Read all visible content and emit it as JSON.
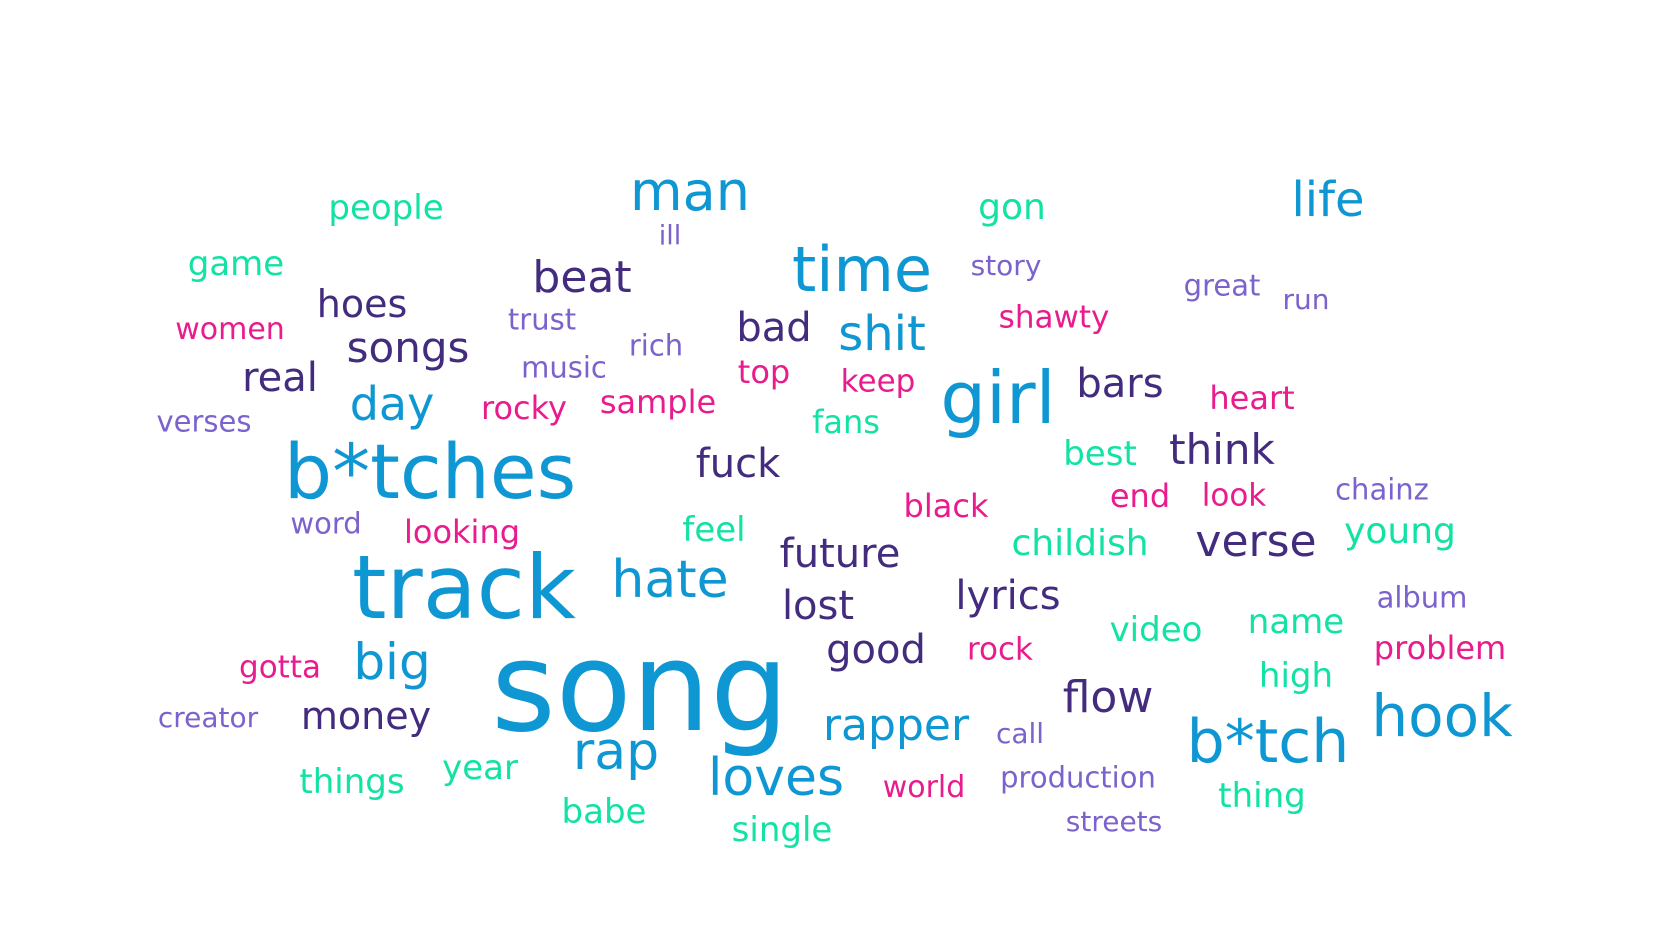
{
  "palette": {
    "blue": "#0E97D2",
    "green": "#12E2A4",
    "navy": "#432C7E",
    "pink": "#E81C8C",
    "violet": "#7C62CC"
  },
  "words": [
    {
      "text": "song",
      "weight": 100
    },
    {
      "text": "track",
      "weight": 80
    },
    {
      "text": "b*tches",
      "weight": 72
    },
    {
      "text": "girl",
      "weight": 70
    },
    {
      "text": "time",
      "weight": 63
    },
    {
      "text": "b*tch",
      "weight": 63
    },
    {
      "text": "hook",
      "weight": 60
    },
    {
      "text": "man",
      "weight": 55
    },
    {
      "text": "hate",
      "weight": 54
    },
    {
      "text": "rap",
      "weight": 54
    },
    {
      "text": "loves",
      "weight": 54
    },
    {
      "text": "big",
      "weight": 52
    },
    {
      "text": "shit",
      "weight": 51
    },
    {
      "text": "life",
      "weight": 50
    },
    {
      "text": "rapper",
      "weight": 48
    },
    {
      "text": "day",
      "weight": 48
    },
    {
      "text": "beat",
      "weight": 48
    },
    {
      "text": "verse",
      "weight": 47
    },
    {
      "text": "flow",
      "weight": 46
    },
    {
      "text": "songs",
      "weight": 45
    },
    {
      "text": "think",
      "weight": 45
    },
    {
      "text": "bars",
      "weight": 44
    },
    {
      "text": "good",
      "weight": 44
    },
    {
      "text": "real",
      "weight": 42
    },
    {
      "text": "bad",
      "weight": 42
    },
    {
      "text": "fuck",
      "weight": 42
    },
    {
      "text": "future",
      "weight": 42
    },
    {
      "text": "lost",
      "weight": 42
    },
    {
      "text": "lyrics",
      "weight": 42
    },
    {
      "text": "hoes",
      "weight": 41
    },
    {
      "text": "money",
      "weight": 40
    },
    {
      "text": "childish",
      "weight": 39
    },
    {
      "text": "young",
      "weight": 39
    },
    {
      "text": "gon",
      "weight": 38
    },
    {
      "text": "people",
      "weight": 37
    },
    {
      "text": "game",
      "weight": 36
    },
    {
      "text": "feel",
      "weight": 36
    },
    {
      "text": "best",
      "weight": 36
    },
    {
      "text": "video",
      "weight": 36
    },
    {
      "text": "name",
      "weight": 36
    },
    {
      "text": "high",
      "weight": 36
    },
    {
      "text": "year",
      "weight": 36
    },
    {
      "text": "things",
      "weight": 36
    },
    {
      "text": "thing",
      "weight": 36
    },
    {
      "text": "babe",
      "weight": 35
    },
    {
      "text": "single",
      "weight": 35
    },
    {
      "text": "fans",
      "weight": 33
    },
    {
      "text": "black",
      "weight": 33
    },
    {
      "text": "heart",
      "weight": 33
    },
    {
      "text": "sample",
      "weight": 33
    },
    {
      "text": "rocky",
      "weight": 33
    },
    {
      "text": "top",
      "weight": 33
    },
    {
      "text": "looking",
      "weight": 33
    },
    {
      "text": "end",
      "weight": 33
    },
    {
      "text": "look",
      "weight": 32
    },
    {
      "text": "problem",
      "weight": 33
    },
    {
      "text": "gotta",
      "weight": 32
    },
    {
      "text": "rock",
      "weight": 32
    },
    {
      "text": "shawty",
      "weight": 32
    },
    {
      "text": "keep",
      "weight": 31
    },
    {
      "text": "women",
      "weight": 31
    },
    {
      "text": "world",
      "weight": 31
    },
    {
      "text": "music",
      "weight": 30
    },
    {
      "text": "trust",
      "weight": 30
    },
    {
      "text": "rich",
      "weight": 30
    },
    {
      "text": "story",
      "weight": 29
    },
    {
      "text": "great",
      "weight": 30
    },
    {
      "text": "run",
      "weight": 29
    },
    {
      "text": "verses",
      "weight": 30
    },
    {
      "text": "word",
      "weight": 30
    },
    {
      "text": "chainz",
      "weight": 30
    },
    {
      "text": "album",
      "weight": 30
    },
    {
      "text": "creator",
      "weight": 29
    },
    {
      "text": "call",
      "weight": 29
    },
    {
      "text": "production",
      "weight": 30
    },
    {
      "text": "streets",
      "weight": 29
    },
    {
      "text": "ill",
      "weight": 28
    }
  ]
}
